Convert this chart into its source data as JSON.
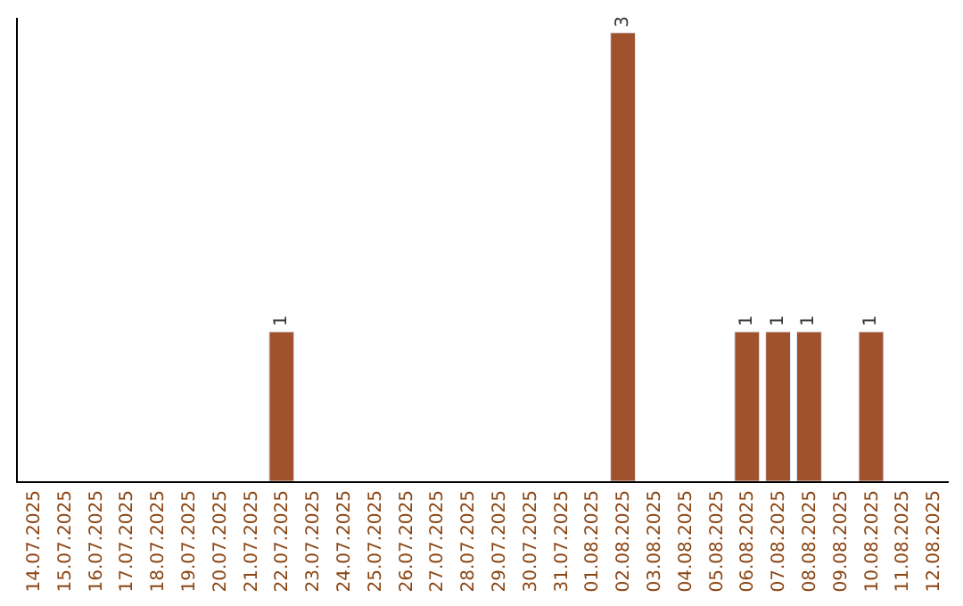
{
  "chart_data": {
    "type": "bar",
    "categories": [
      "14.07.2025",
      "15.07.2025",
      "16.07.2025",
      "17.07.2025",
      "18.07.2025",
      "19.07.2025",
      "20.07.2025",
      "21.07.2025",
      "22.07.2025",
      "23.07.2025",
      "24.07.2025",
      "25.07.2025",
      "26.07.2025",
      "27.07.2025",
      "28.07.2025",
      "29.07.2025",
      "30.07.2025",
      "31.07.2025",
      "01.08.2025",
      "02.08.2025",
      "03.08.2025",
      "04.08.2025",
      "05.08.2025",
      "06.08.2025",
      "07.08.2025",
      "08.08.2025",
      "09.08.2025",
      "10.08.2025",
      "11.08.2025",
      "12.08.2025"
    ],
    "values": [
      null,
      null,
      null,
      null,
      null,
      null,
      null,
      null,
      1,
      null,
      null,
      null,
      null,
      null,
      null,
      null,
      null,
      null,
      null,
      3,
      null,
      null,
      null,
      1,
      1,
      1,
      null,
      1,
      null,
      null
    ],
    "color": "#a0522d",
    "ylim": [
      0,
      3.1
    ],
    "tick_labels": "x",
    "data_labels": true
  }
}
